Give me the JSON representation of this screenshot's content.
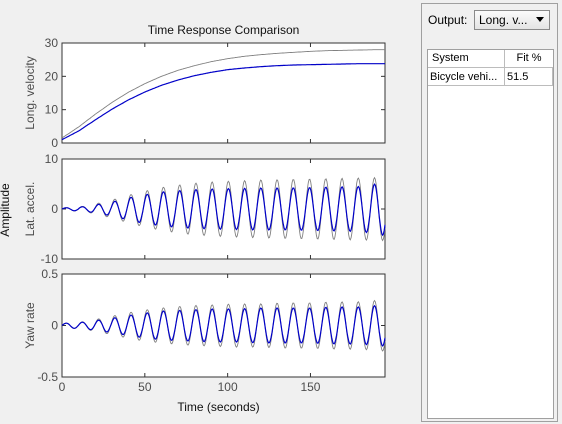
{
  "panel": {
    "output_label": "Output:",
    "output_value": "Long. v...",
    "table": {
      "headers": [
        "System",
        "Fit %"
      ],
      "rows": [
        [
          "Bicycle vehi...",
          "51.5"
        ]
      ]
    }
  },
  "chart_data": {
    "type": "line",
    "title": "Time Response Comparison",
    "shared_ylabel": "Amplitude",
    "xlabel": "Time (seconds)",
    "xlim": [
      0,
      195
    ],
    "xticks": [
      "0",
      "50",
      "100",
      "150"
    ],
    "colors": {
      "measured": "#808080",
      "model": "#0000c8"
    },
    "subplots": [
      {
        "ylabel": "Long. velocity",
        "ylim": [
          0,
          30
        ],
        "yticks": [
          "0",
          "10",
          "20",
          "30"
        ],
        "series": [
          {
            "x": [
              0,
              10,
              20,
              30,
              40,
              50,
              60,
              70,
              80,
              90,
              100,
              110,
              120,
              130,
              140,
              150,
              160,
              170,
              180,
              190,
              195
            ],
            "values": [
              1.5,
              4.8,
              8.6,
              12.1,
              15.2,
              17.8,
              20.0,
              21.8,
              23.2,
              24.4,
              25.3,
              26.0,
              26.5,
              26.9,
              27.2,
              27.5,
              27.7,
              27.8,
              27.9,
              28.0,
              28.0
            ]
          },
          {
            "x": [
              0,
              10,
              20,
              30,
              40,
              50,
              60,
              70,
              80,
              90,
              100,
              110,
              120,
              130,
              140,
              150,
              160,
              170,
              180,
              190,
              195
            ],
            "values": [
              1.0,
              3.6,
              6.9,
              10.1,
              12.9,
              15.3,
              17.3,
              18.9,
              20.2,
              21.2,
              22.0,
              22.5,
              22.9,
              23.2,
              23.4,
              23.5,
              23.6,
              23.7,
              23.8,
              23.8,
              23.8
            ]
          }
        ]
      },
      {
        "ylabel": "Lat. accel.",
        "ylim": [
          -10,
          10
        ],
        "yticks": [
          "10",
          "0",
          "-10"
        ],
        "period": 9.8,
        "series": [
          {
            "x": [
              0,
              15,
              30,
              45,
              60,
              75,
              90,
              105,
              120,
              135,
              150,
              165,
              180,
              195
            ],
            "values": [
              0.2,
              0.6,
              1.8,
              3.2,
              4.3,
              5.0,
              5.4,
              5.6,
              5.8,
              5.9,
              6.0,
              6.1,
              6.2,
              6.3
            ]
          },
          {
            "x": [
              0,
              15,
              30,
              45,
              60,
              75,
              90,
              105,
              120,
              135,
              150,
              165,
              180,
              195
            ],
            "values": [
              0.2,
              0.5,
              1.4,
              2.6,
              3.4,
              3.8,
              4.0,
              4.1,
              4.2,
              4.2,
              4.3,
              4.4,
              4.5,
              5.3
            ]
          }
        ]
      },
      {
        "ylabel": "Yaw rate",
        "ylim": [
          -0.5,
          0.5
        ],
        "yticks": [
          "0.5",
          "0",
          "-0.5"
        ],
        "period": 9.8,
        "series": [
          {
            "x": [
              0,
              15,
              30,
              45,
              60,
              75,
              90,
              105,
              120,
              135,
              150,
              165,
              180,
              195
            ],
            "values": [
              0.02,
              0.04,
              0.09,
              0.14,
              0.17,
              0.19,
              0.2,
              0.21,
              0.21,
              0.22,
              0.22,
              0.23,
              0.23,
              0.25
            ]
          },
          {
            "x": [
              0,
              15,
              30,
              45,
              60,
              75,
              90,
              105,
              120,
              135,
              150,
              165,
              180,
              195
            ],
            "values": [
              0.02,
              0.035,
              0.07,
              0.11,
              0.14,
              0.15,
              0.16,
              0.16,
              0.17,
              0.17,
              0.17,
              0.18,
              0.18,
              0.2
            ]
          }
        ]
      }
    ]
  }
}
